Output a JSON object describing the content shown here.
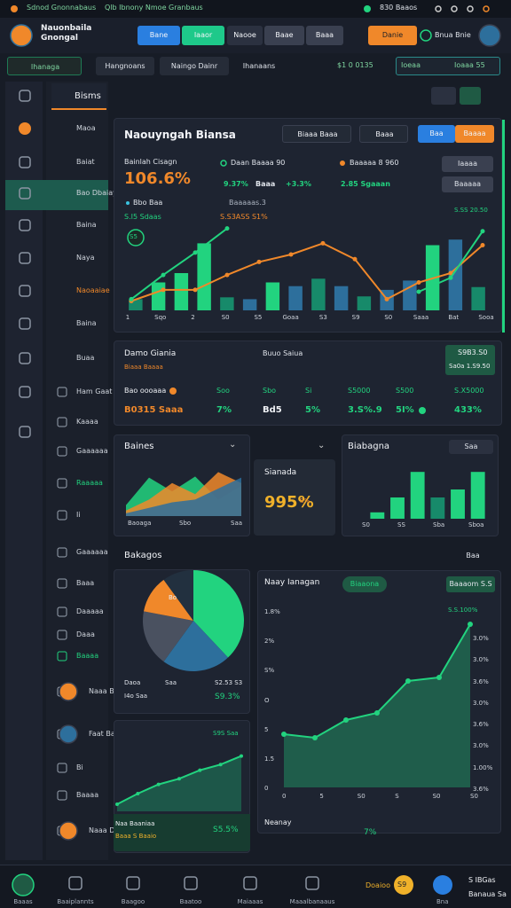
{
  "status_bar": {
    "left": "Sdnod Gnonnabaus",
    "center": "Qlb Ibnony Nmoe Granbaus",
    "right": "830 Baaos"
  },
  "header": {
    "title": "Nauonbaila Gnongal",
    "tabs": [
      "Bane",
      "Iaaor",
      "Naooe",
      "Baae",
      "Baaa"
    ],
    "button": "Danie",
    "user": "Bnua Bnie"
  },
  "subnav": {
    "tabs": [
      "Ihanaga",
      "Hangnoans",
      "Naingo Dainr",
      "Ihanaans"
    ],
    "stat": "$1 0 0135",
    "search": "Ioeaa",
    "search_right": "Ioaaa 55"
  },
  "sidebar": {
    "items": [
      "Maoa",
      "Baiat",
      "Bao Dbaiay",
      "Baina",
      "Naya",
      "Naoaaiae",
      "Baina",
      "Buaa",
      "Ham Gaat",
      "Kaaaa",
      "Gaaaaaa",
      "Raaaaa",
      "Ii",
      "Gaaaaaa",
      "Baaa",
      "Daaaaa",
      "Daaa",
      "Baaaa",
      "Naaa Baaa",
      "Faat Bay",
      "Bi",
      "Baaaa",
      "Naaa Daaa"
    ]
  },
  "panel_tab": "Bisms",
  "main_chart": {
    "title": "Naouyngah Biansa",
    "buttons": [
      "Biaaa Baaa",
      "Baaa",
      "Baa",
      "Baaaa"
    ],
    "metric_label": "Bainlah Cisagn",
    "metric_value": "106.6%",
    "legend": [
      "Daan Baaaa 90",
      "Baaaaa 8 960"
    ],
    "stats": [
      "9.37%",
      "Baaa",
      "+3.3%",
      "2.85 Sgaaan"
    ],
    "side_buttons": [
      "Iaaaa",
      "Baaaaa"
    ],
    "sub_label": "Bbo Baa",
    "sub_value": "S.I5 Sdaas",
    "note": "Baaaaas.3",
    "note2": "S.S3ASS S1%",
    "top_right": "S.SS 20.50",
    "badge": "S5",
    "x_labels": [
      "1",
      "Sqo",
      "2",
      "S0",
      "S5",
      "Goaa",
      "S3",
      "S9",
      "S0",
      "Saaa",
      "Bat",
      "Sooa"
    ],
    "ylim": [
      0,
      100
    ],
    "bars": {
      "values": [
        12,
        30,
        40,
        72,
        14,
        12,
        30,
        26,
        34,
        26,
        15,
        22,
        32,
        70,
        76,
        25
      ],
      "colors": [
        "#178a6a",
        "#22d37f",
        "#22d37f",
        "#22d37f",
        "#178a6a",
        "#2d6f9c",
        "#22d37f",
        "#2d6f9c",
        "#178a6a",
        "#2d6f9c",
        "#178a6a",
        "#2d6f9c",
        "#2d6f9c",
        "#22d37f",
        "#2d6f9c",
        "#178a6a"
      ]
    },
    "lines": [
      {
        "color": "#f0882a",
        "values": [
          10,
          22,
          22,
          38,
          52,
          60,
          72,
          55,
          12,
          30,
          40,
          70
        ]
      },
      {
        "color": "#22d37f",
        "values": [
          12,
          38,
          62,
          88,
          null,
          null,
          null,
          null,
          null,
          20,
          35,
          85
        ]
      }
    ]
  },
  "stats_table": {
    "title": "Damo Giania",
    "subtitle": "Biaaa Baaaa",
    "header": "Buuo Saiua",
    "box": [
      "S9B3.S0",
      "Sa0a 1.S9.50"
    ],
    "rows": [
      [
        "Bao oooaaa",
        "Soo",
        "Sbo",
        "Si",
        "S5000",
        "S500",
        "S.X5000"
      ],
      [
        "B0315 Saaa",
        "7%",
        "Bd5",
        "5%",
        "3.S%.9",
        "5I%",
        "433%"
      ]
    ]
  },
  "area_card": {
    "title": "Baines",
    "x_labels": [
      "Baoaga",
      "Sbo",
      "Saa"
    ],
    "ylim": [
      0,
      100
    ],
    "areas": [
      {
        "color": "#22d37f",
        "values": [
          20,
          70,
          45,
          72,
          30,
          55
        ]
      },
      {
        "color": "#f0882a",
        "values": [
          10,
          30,
          60,
          40,
          80,
          60
        ]
      },
      {
        "color": "#2d6f9c",
        "values": [
          5,
          15,
          25,
          30,
          50,
          70
        ]
      }
    ]
  },
  "mini_card": {
    "title": "Sianada",
    "value": "995%",
    "unit": "S%"
  },
  "bar_card": {
    "title": "Biabagna",
    "dropdown": "Saa",
    "x_labels": [
      "S0",
      "SS",
      "Sba",
      "Sboa"
    ],
    "ylim": [
      0,
      100
    ],
    "values": [
      12,
      40,
      88,
      40,
      55,
      88
    ],
    "colors": [
      "#22d37f",
      "#22d37f",
      "#22d37f",
      "#178a6a",
      "#22d37f",
      "#22d37f"
    ]
  },
  "section": {
    "title": "Bakagos",
    "dropdown": "Baa"
  },
  "pie_card": {
    "label": "Bo",
    "values": [
      38,
      22,
      18,
      12,
      10
    ],
    "colors": [
      "#22d37f",
      "#2d6f9c",
      "#4a5160",
      "#f0882a",
      "#22303f"
    ],
    "legend": [
      [
        "Daoa",
        "Saa",
        "S2.53 S3"
      ],
      [
        "I4o Saa",
        "S9.3%"
      ]
    ]
  },
  "line_card": {
    "top": "S9S Saa",
    "ylim": [
      0,
      100
    ],
    "values": [
      10,
      25,
      38,
      46,
      58,
      66,
      78
    ],
    "footer": [
      "Naa Baaniaa",
      "Baaa S Baaio"
    ],
    "footer_value": "S5.5%"
  },
  "big_chart": {
    "title": "Naay Ianagan",
    "pill": "Biaaona",
    "pill_right": "Baaaom S.S",
    "top_right": "S.S.100%",
    "left_labels": [
      "1.8%",
      "2%",
      "S%",
      "O",
      "5",
      "1.5",
      "0"
    ],
    "right_labels": [
      "3.0%",
      "3.0%",
      "3.6%",
      "3.0%",
      "3.6%",
      "3.0%",
      "1.00%",
      "3.6%"
    ],
    "x_labels": [
      "0",
      "5",
      "S0",
      "S",
      "S0",
      "S0"
    ],
    "ylim": [
      0,
      100
    ],
    "values": [
      30,
      28,
      38,
      42,
      60,
      62,
      92
    ],
    "footer": "Neanay",
    "footer_value": "7%"
  },
  "bottom_nav": {
    "items": [
      "Baaas",
      "Baaiplannts",
      "Baagoo",
      "Baatoo",
      "Maiaaas",
      "Maaalbanaaus"
    ],
    "action": "Doaioo",
    "badge": "S9",
    "profile": "Bna",
    "right": [
      "S IBGas",
      "Banaua Sa"
    ]
  }
}
